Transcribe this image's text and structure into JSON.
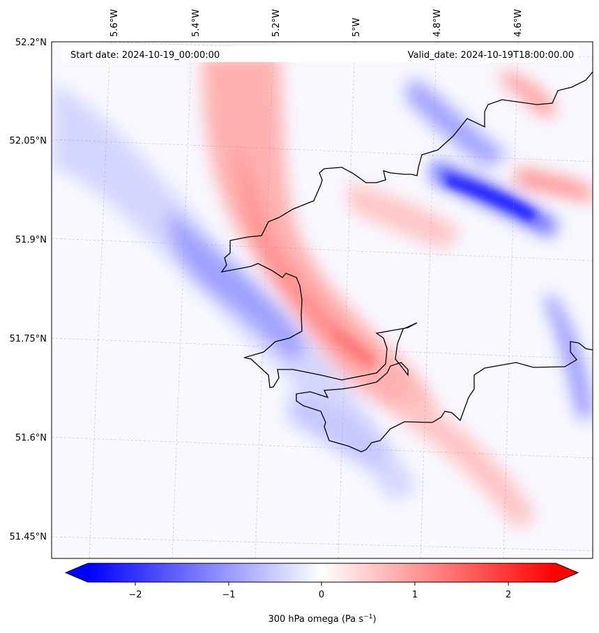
{
  "header": {
    "start_date": "Start date: 2024-10-19_00:00:00",
    "valid_date": "Valid_date: 2024-10-19T18:00:00.00"
  },
  "lon_ticks": [
    "5.6°W",
    "5.4°W",
    "5.2°W",
    "5°W",
    "4.8°W",
    "4.6°W"
  ],
  "lat_ticks": [
    "52.2°N",
    "52.05°N",
    "51.9°N",
    "51.75°N",
    "51.6°N",
    "51.45°N"
  ],
  "colorbar": {
    "ticks": [
      "−2",
      "−1",
      "0",
      "1",
      "2"
    ],
    "label": "300 hPa omega (Pa s",
    "label_exp": "−1",
    "label_tail": ")",
    "range": [
      -2.75,
      2.75
    ],
    "colors": {
      "negative": "#0000ff",
      "zero": "#ffffff",
      "positive": "#ff0000"
    }
  },
  "map": {
    "extent": {
      "lon": [
        -5.72,
        -4.48
      ],
      "lat": [
        51.43,
        52.2
      ]
    },
    "coastline_color": "#000000",
    "gridlines": "dashed-grey"
  }
}
